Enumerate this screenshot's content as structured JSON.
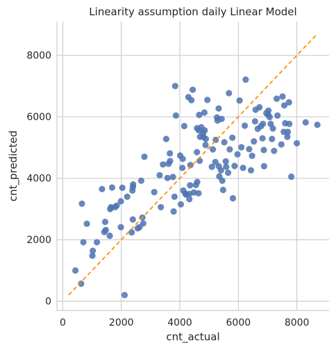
{
  "chart_data": {
    "type": "scatter",
    "title": "Linearity assumption daily Linear Model",
    "xlabel": "cnt_actual",
    "ylabel": "cnt_predicted",
    "xlim": [
      -200,
      9100
    ],
    "ylim": [
      -300,
      9100
    ],
    "xticks": [
      0,
      2000,
      4000,
      6000,
      8000
    ],
    "yticks": [
      0,
      2000,
      4000,
      6000,
      8000
    ],
    "grid": true,
    "point_color": "#4c72b0",
    "line_color": "#ff8c00",
    "reference_line": {
      "style": "dashed",
      "x": [
        200,
        8700
      ],
      "y": [
        200,
        8700
      ]
    },
    "series": [
      {
        "points": [
          [
            431,
            1000
          ],
          [
            627,
            570
          ],
          [
            654,
            3170
          ],
          [
            705,
            1920
          ],
          [
            822,
            2520
          ],
          [
            1013,
            1480
          ],
          [
            1027,
            1640
          ],
          [
            1167,
            1920
          ],
          [
            1341,
            3650
          ],
          [
            1421,
            2250
          ],
          [
            1450,
            2580
          ],
          [
            1471,
            2320
          ],
          [
            1605,
            2130
          ],
          [
            1623,
            3000
          ],
          [
            1650,
            3060
          ],
          [
            1685,
            3700
          ],
          [
            1787,
            3060
          ],
          [
            1842,
            3110
          ],
          [
            1985,
            2410
          ],
          [
            1985,
            3250
          ],
          [
            2034,
            3690
          ],
          [
            2114,
            200
          ],
          [
            2200,
            3400
          ],
          [
            2354,
            2240
          ],
          [
            2380,
            3600
          ],
          [
            2392,
            2660
          ],
          [
            2399,
            3720
          ],
          [
            2404,
            3800
          ],
          [
            2559,
            2370
          ],
          [
            2620,
            2410
          ],
          [
            2680,
            3920
          ],
          [
            2720,
            2720
          ],
          [
            2750,
            2530
          ],
          [
            2790,
            4700
          ],
          [
            3127,
            3550
          ],
          [
            3312,
            4100
          ],
          [
            3351,
            3060
          ],
          [
            3422,
            4450
          ],
          [
            3534,
            5280
          ],
          [
            3580,
            4010
          ],
          [
            3614,
            4470
          ],
          [
            3659,
            4810
          ],
          [
            3667,
            4560
          ],
          [
            3764,
            4040
          ],
          [
            3787,
            2920
          ],
          [
            3820,
            3400
          ],
          [
            3840,
            7000
          ],
          [
            3867,
            6040
          ],
          [
            4010,
            4740
          ],
          [
            4035,
            3150
          ],
          [
            4084,
            4340
          ],
          [
            4098,
            4630
          ],
          [
            4120,
            3600
          ],
          [
            4150,
            5700
          ],
          [
            4187,
            3500
          ],
          [
            4220,
            3470
          ],
          [
            4294,
            6640
          ],
          [
            4327,
            3320
          ],
          [
            4329,
            3490
          ],
          [
            4350,
            3770
          ],
          [
            4363,
            4430
          ],
          [
            4398,
            6540
          ],
          [
            4440,
            6880
          ],
          [
            4480,
            3540
          ],
          [
            4550,
            3780
          ],
          [
            4586,
            4850
          ],
          [
            4588,
            5630
          ],
          [
            4594,
            3880
          ],
          [
            4640,
            3510
          ],
          [
            4651,
            5560
          ],
          [
            4660,
            6060
          ],
          [
            4677,
            4570
          ],
          [
            4693,
            5350
          ],
          [
            4735,
            5660
          ],
          [
            4795,
            5470
          ],
          [
            4811,
            5340
          ],
          [
            4840,
            6140
          ],
          [
            4850,
            5560
          ],
          [
            4880,
            5080
          ],
          [
            4890,
            5280
          ],
          [
            4940,
            6550
          ],
          [
            5096,
            4370
          ],
          [
            5129,
            4940
          ],
          [
            5215,
            4530
          ],
          [
            5228,
            5250
          ],
          [
            5270,
            5980
          ],
          [
            5290,
            5880
          ],
          [
            5327,
            6270
          ],
          [
            5331,
            4390
          ],
          [
            5350,
            4060
          ],
          [
            5405,
            4260
          ],
          [
            5429,
            5930
          ],
          [
            5450,
            3920
          ],
          [
            5480,
            3620
          ],
          [
            5520,
            5170
          ],
          [
            5570,
            4550
          ],
          [
            5585,
            4370
          ],
          [
            5650,
            4180
          ],
          [
            5680,
            6770
          ],
          [
            5705,
            4940
          ],
          [
            5795,
            5320
          ],
          [
            5815,
            3350
          ],
          [
            5870,
            4400
          ],
          [
            5970,
            4780
          ],
          [
            6043,
            6530
          ],
          [
            6104,
            5010
          ],
          [
            6160,
            4340
          ],
          [
            6221,
            5710
          ],
          [
            6250,
            7210
          ],
          [
            6370,
            4950
          ],
          [
            6430,
            4260
          ],
          [
            6470,
            4730
          ],
          [
            6531,
            5200
          ],
          [
            6571,
            5850
          ],
          [
            6590,
            6230
          ],
          [
            6660,
            5610
          ],
          [
            6720,
            6310
          ],
          [
            6770,
            5690
          ],
          [
            6824,
            5300
          ],
          [
            6840,
            5770
          ],
          [
            6870,
            4920
          ],
          [
            6880,
            4390
          ],
          [
            6955,
            6120
          ],
          [
            7020,
            6060
          ],
          [
            7030,
            6200
          ],
          [
            7070,
            5990
          ],
          [
            7105,
            5770
          ],
          [
            7150,
            5280
          ],
          [
            7180,
            5620
          ],
          [
            7220,
            4890
          ],
          [
            7310,
            6590
          ],
          [
            7338,
            6040
          ],
          [
            7470,
            5100
          ],
          [
            7510,
            6660
          ],
          [
            7550,
            5510
          ],
          [
            7570,
            6370
          ],
          [
            7601,
            5790
          ],
          [
            7675,
            5350
          ],
          [
            7690,
            5510
          ],
          [
            7730,
            6470
          ],
          [
            7740,
            5770
          ],
          [
            7810,
            4050
          ],
          [
            8000,
            5140
          ],
          [
            8300,
            5820
          ],
          [
            8700,
            5740
          ]
        ]
      }
    ]
  }
}
